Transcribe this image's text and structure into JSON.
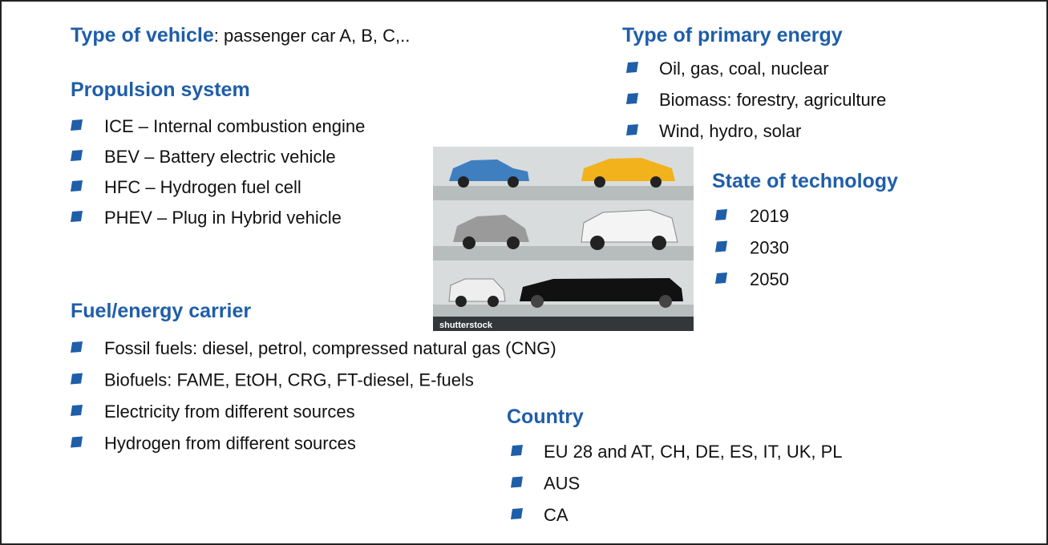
{
  "vehicle": {
    "heading": "Type of vehicle",
    "text": ": passenger car A, B, C,.."
  },
  "propulsion": {
    "heading": "Propulsion system",
    "items": [
      "ICE – Internal combustion engine",
      "BEV – Battery electric vehicle",
      "HFC – Hydrogen fuel cell",
      "PHEV – Plug in Hybrid vehicle"
    ]
  },
  "fuel": {
    "heading": "Fuel/energy carrier",
    "items": [
      "Fossil fuels: diesel, petrol, compressed natural gas (CNG)",
      "Biofuels: FAME, EtOH, CRG, FT-diesel, E-fuels",
      "Electricity from different sources",
      "Hydrogen from different sources"
    ]
  },
  "primary_energy": {
    "heading": "Type of primary energy",
    "items": [
      "Oil, gas, coal, nuclear",
      "Biomass: forestry, agriculture",
      "Wind, hydro, solar"
    ]
  },
  "technology": {
    "heading": "State of technology",
    "items": [
      "2019",
      "2030",
      "2050"
    ]
  },
  "country": {
    "heading": "Country",
    "items": [
      "EU 28 and AT, CH, DE, ES, IT, UK, PL",
      "AUS",
      "CA"
    ]
  },
  "image": {
    "caption": "shutterstock"
  }
}
